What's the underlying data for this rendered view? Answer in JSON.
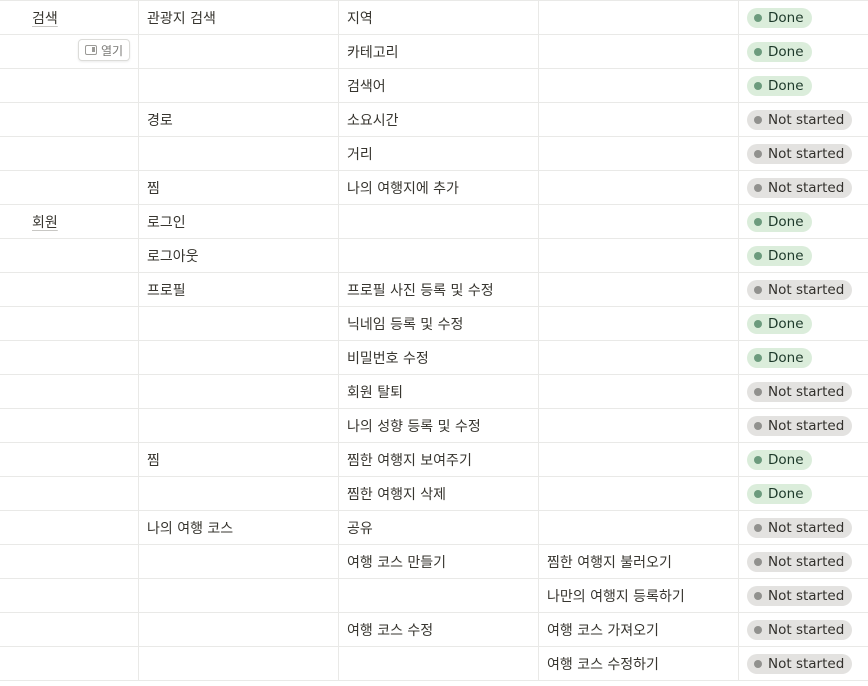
{
  "colors": {
    "done_bg": "#dbeddb",
    "done_dot": "#6c9b7d",
    "done_text": "#1c3829",
    "notstarted_bg": "#e3e2e0",
    "notstarted_dot": "#91918e",
    "notstarted_text": "#32302c"
  },
  "open_button": {
    "label": "열기",
    "icon": "side-peek-icon"
  },
  "rows": [
    {
      "c1": "검색",
      "c2": "관광지 검색",
      "c3": "지역",
      "c4": "",
      "status": "Done"
    },
    {
      "c1": "",
      "c2": "",
      "c3": "카테고리",
      "c4": "",
      "status": "Done"
    },
    {
      "c1": "",
      "c2": "",
      "c3": "검색어",
      "c4": "",
      "status": "Done"
    },
    {
      "c1": "",
      "c2": "경로",
      "c3": "소요시간",
      "c4": "",
      "status": "Not started"
    },
    {
      "c1": "",
      "c2": "",
      "c3": "거리",
      "c4": "",
      "status": "Not started"
    },
    {
      "c1": "",
      "c2": "찜",
      "c3": "나의 여행지에 추가",
      "c4": "",
      "status": "Not started"
    },
    {
      "c1": "회원",
      "c2": "로그인",
      "c3": "",
      "c4": "",
      "status": "Done"
    },
    {
      "c1": "",
      "c2": "로그아웃",
      "c3": "",
      "c4": "",
      "status": "Done"
    },
    {
      "c1": "",
      "c2": "프로필",
      "c3": "프로필 사진 등록 및 수정",
      "c4": "",
      "status": "Not started"
    },
    {
      "c1": "",
      "c2": "",
      "c3": "닉네임 등록 및 수정",
      "c4": "",
      "status": "Done"
    },
    {
      "c1": "",
      "c2": "",
      "c3": "비밀번호 수정",
      "c4": "",
      "status": "Done"
    },
    {
      "c1": "",
      "c2": "",
      "c3": "회원 탈퇴",
      "c4": "",
      "status": "Not started"
    },
    {
      "c1": "",
      "c2": "",
      "c3": "나의 성향 등록 및 수정",
      "c4": "",
      "status": "Not started"
    },
    {
      "c1": "",
      "c2": "찜",
      "c3": "찜한 여행지 보여주기",
      "c4": "",
      "status": "Done"
    },
    {
      "c1": "",
      "c2": "",
      "c3": "찜한 여행지 삭제",
      "c4": "",
      "status": "Done"
    },
    {
      "c1": "",
      "c2": "나의 여행 코스",
      "c3": "공유",
      "c4": "",
      "status": "Not started"
    },
    {
      "c1": "",
      "c2": "",
      "c3": "여행 코스 만들기",
      "c4": "찜한 여행지 불러오기",
      "status": "Not started"
    },
    {
      "c1": "",
      "c2": "",
      "c3": "",
      "c4": "나만의 여행지 등록하기",
      "status": "Not started"
    },
    {
      "c1": "",
      "c2": "",
      "c3": "여행 코스 수정",
      "c4": "여행 코스 가져오기",
      "status": "Not started"
    },
    {
      "c1": "",
      "c2": "",
      "c3": "",
      "c4": "여행 코스 수정하기",
      "status": "Not started"
    }
  ]
}
